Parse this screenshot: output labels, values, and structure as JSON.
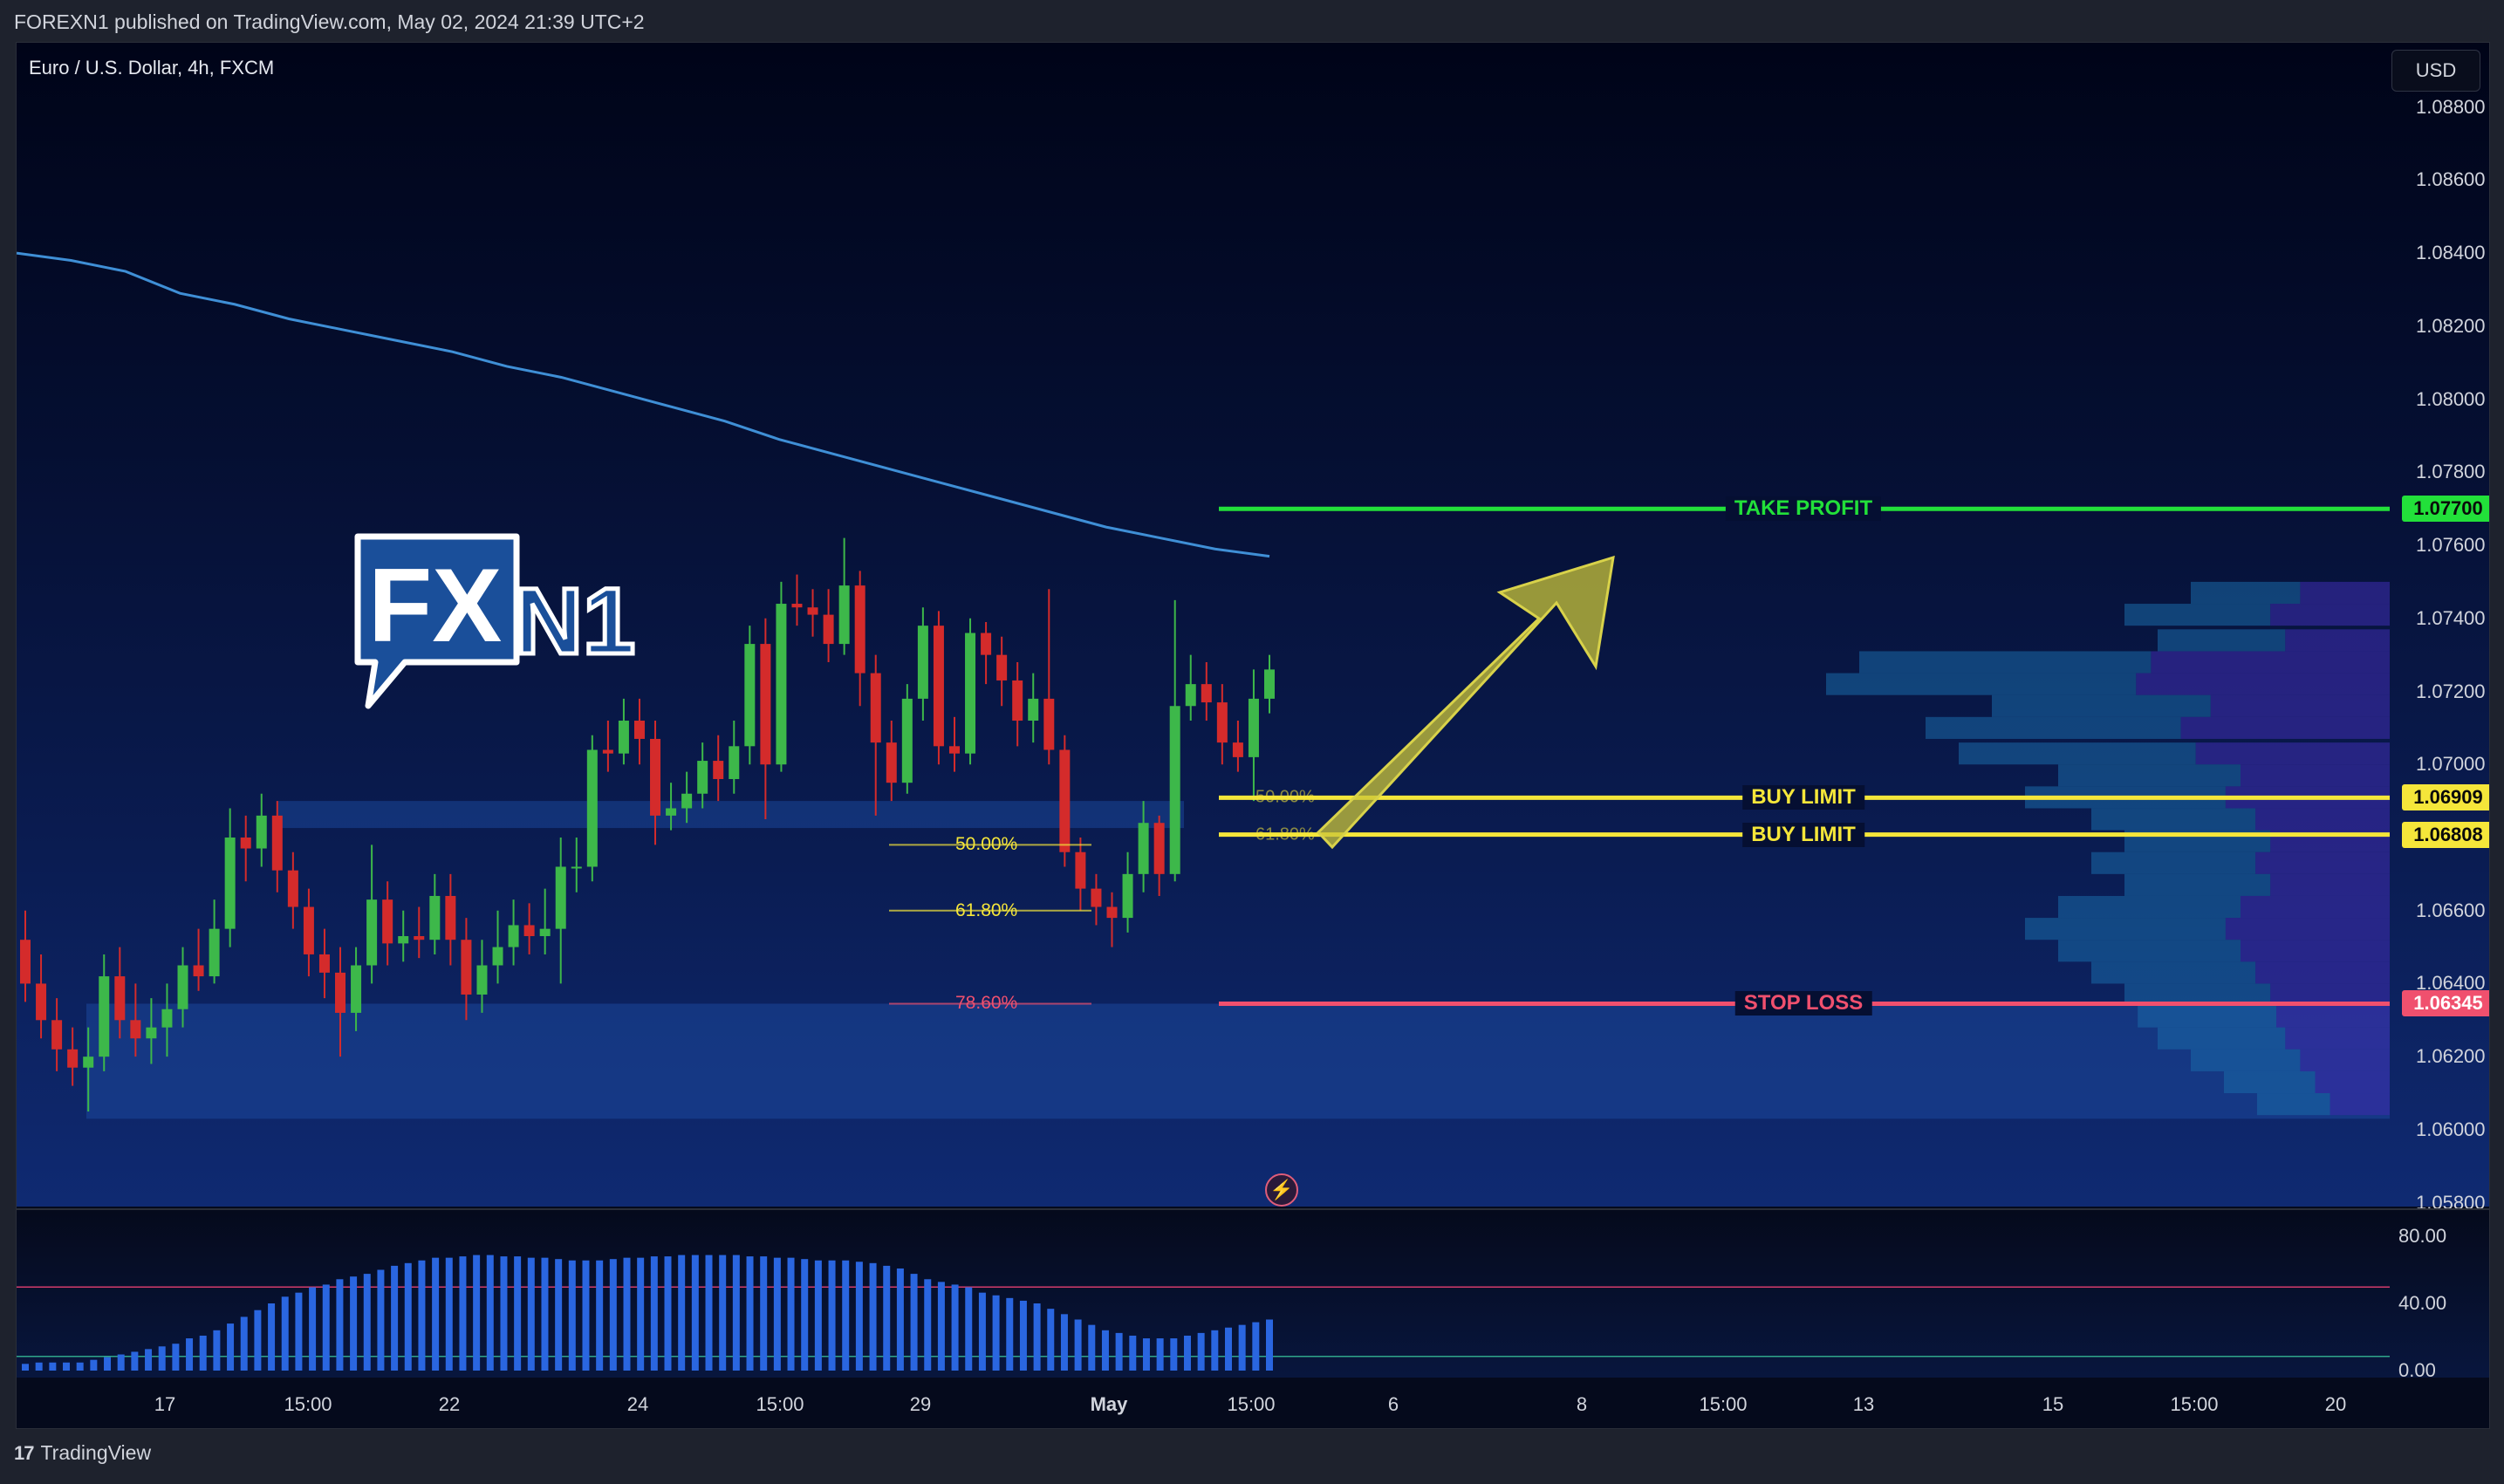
{
  "header": {
    "published_text": "FOREXN1 published on TradingView.com, May 02, 2024 21:39 UTC+2"
  },
  "chart": {
    "symbol_title": "Euro / U.S. Dollar, 4h, FXCM",
    "currency": "USD",
    "logo": {
      "text_a": "FX",
      "text_b": "N1"
    }
  },
  "levels": {
    "take_profit": {
      "label": "TAKE PROFIT",
      "price": "1.07700",
      "color": "#22e03a"
    },
    "buy_limit_1": {
      "label": "BUY LIMIT",
      "price": "1.06909",
      "color": "#f5e63a"
    },
    "buy_limit_2": {
      "label": "BUY LIMIT",
      "price": "1.06808",
      "color": "#f5e63a"
    },
    "stop_loss": {
      "label": "STOP LOSS",
      "price": "1.06345",
      "color": "#f0506e"
    }
  },
  "fib_labels": {
    "f50": "50.00%",
    "f618": "61.80%",
    "f786": "78.60%",
    "f50_small": "50.00%",
    "f618_small": "61.80%"
  },
  "osc_ticks": [
    "80.00",
    "40.00",
    "0.00"
  ],
  "footer": {
    "brand_mark": "17",
    "brand": "TradingView"
  },
  "chart_data": {
    "type": "candlestick",
    "title": "Euro / U.S. Dollar, 4h, FXCM",
    "price_axis_ticks": [
      "1.08800",
      "1.08600",
      "1.08400",
      "1.08200",
      "1.08000",
      "1.07800",
      "1.07600",
      "1.07400",
      "1.07200",
      "1.07000",
      "1.06400",
      "1.06600",
      "1.06200",
      "1.06000",
      "1.05800"
    ],
    "time_axis_ticks": [
      "17",
      "15:00",
      "22",
      "24",
      "15:00",
      "29",
      "May",
      "15:00",
      "6",
      "8",
      "15:00",
      "13",
      "15",
      "15:00",
      "20"
    ],
    "ylim": [
      1.0578,
      1.0889
    ],
    "levels": [
      {
        "name": "TAKE PROFIT",
        "value": 1.077
      },
      {
        "name": "BUY LIMIT",
        "value": 1.06909
      },
      {
        "name": "BUY LIMIT",
        "value": 1.06808
      },
      {
        "name": "STOP LOSS",
        "value": 1.06345
      }
    ],
    "fibonacci": [
      {
        "label": "50.00%",
        "value": 1.0678
      },
      {
        "label": "61.80%",
        "value": 1.066
      },
      {
        "label": "78.60%",
        "value": 1.06345
      }
    ],
    "moving_average": [
      1.084,
      1.0838,
      1.0835,
      1.0829,
      1.0826,
      1.0822,
      1.0819,
      1.0816,
      1.0813,
      1.0809,
      1.0806,
      1.0802,
      1.0798,
      1.0794,
      1.0789,
      1.0785,
      1.0781,
      1.0777,
      1.0773,
      1.0769,
      1.0765,
      1.0762,
      1.0759,
      1.0757
    ],
    "candles": [
      [
        1.0652,
        1.064,
        1.066,
        1.0635
      ],
      [
        1.064,
        1.063,
        1.0648,
        1.0625
      ],
      [
        1.063,
        1.0622,
        1.0636,
        1.0616
      ],
      [
        1.0622,
        1.0617,
        1.0628,
        1.0612
      ],
      [
        1.0617,
        1.062,
        1.0628,
        1.0605
      ],
      [
        1.062,
        1.0642,
        1.0648,
        1.0616
      ],
      [
        1.0642,
        1.063,
        1.065,
        1.0625
      ],
      [
        1.063,
        1.0625,
        1.064,
        1.062
      ],
      [
        1.0625,
        1.0628,
        1.0636,
        1.0618
      ],
      [
        1.0628,
        1.0633,
        1.064,
        1.062
      ],
      [
        1.0633,
        1.0645,
        1.065,
        1.0628
      ],
      [
        1.0645,
        1.0642,
        1.0655,
        1.0638
      ],
      [
        1.0642,
        1.0655,
        1.0663,
        1.064
      ],
      [
        1.0655,
        1.068,
        1.0688,
        1.065
      ],
      [
        1.068,
        1.0677,
        1.0686,
        1.0668
      ],
      [
        1.0677,
        1.0686,
        1.0692,
        1.0672
      ],
      [
        1.0686,
        1.0671,
        1.069,
        1.0665
      ],
      [
        1.0671,
        1.0661,
        1.0676,
        1.0655
      ],
      [
        1.0661,
        1.0648,
        1.0666,
        1.0642
      ],
      [
        1.0648,
        1.0643,
        1.0655,
        1.0636
      ],
      [
        1.0643,
        1.0632,
        1.065,
        1.062
      ],
      [
        1.0632,
        1.0645,
        1.065,
        1.0627
      ],
      [
        1.0645,
        1.0663,
        1.0678,
        1.064
      ],
      [
        1.0663,
        1.0651,
        1.0668,
        1.0645
      ],
      [
        1.0651,
        1.0653,
        1.066,
        1.0646
      ],
      [
        1.0653,
        1.0652,
        1.0661,
        1.0647
      ],
      [
        1.0652,
        1.0664,
        1.067,
        1.0648
      ],
      [
        1.0664,
        1.0652,
        1.067,
        1.0645
      ],
      [
        1.0652,
        1.0637,
        1.0658,
        1.063
      ],
      [
        1.0637,
        1.0645,
        1.0652,
        1.0632
      ],
      [
        1.0645,
        1.065,
        1.066,
        1.064
      ],
      [
        1.065,
        1.0656,
        1.0663,
        1.0645
      ],
      [
        1.0656,
        1.0653,
        1.0662,
        1.0648
      ],
      [
        1.0653,
        1.0655,
        1.0666,
        1.0648
      ],
      [
        1.0655,
        1.0672,
        1.068,
        1.064
      ],
      [
        1.0672,
        1.0672,
        1.068,
        1.0665
      ],
      [
        1.0672,
        1.0704,
        1.0708,
        1.0668
      ],
      [
        1.0704,
        1.0703,
        1.0712,
        1.0698
      ],
      [
        1.0703,
        1.0712,
        1.0718,
        1.07
      ],
      [
        1.0712,
        1.0707,
        1.0718,
        1.07
      ],
      [
        1.0707,
        1.0686,
        1.0712,
        1.0678
      ],
      [
        1.0686,
        1.0688,
        1.0695,
        1.0682
      ],
      [
        1.0688,
        1.0692,
        1.0698,
        1.0684
      ],
      [
        1.0692,
        1.0701,
        1.0706,
        1.0688
      ],
      [
        1.0701,
        1.0696,
        1.0708,
        1.069
      ],
      [
        1.0696,
        1.0705,
        1.0712,
        1.0692
      ],
      [
        1.0705,
        1.0733,
        1.0738,
        1.07
      ],
      [
        1.0733,
        1.07,
        1.074,
        1.0685
      ],
      [
        1.07,
        1.0744,
        1.075,
        1.0698
      ],
      [
        1.0744,
        1.0743,
        1.0752,
        1.0738
      ],
      [
        1.0743,
        1.0741,
        1.0748,
        1.0735
      ],
      [
        1.0741,
        1.0733,
        1.0748,
        1.0728
      ],
      [
        1.0733,
        1.0749,
        1.0762,
        1.073
      ],
      [
        1.0749,
        1.0725,
        1.0753,
        1.0716
      ],
      [
        1.0725,
        1.0706,
        1.073,
        1.0686
      ],
      [
        1.0706,
        1.0695,
        1.0712,
        1.069
      ],
      [
        1.0695,
        1.0718,
        1.0722,
        1.0692
      ],
      [
        1.0718,
        1.0738,
        1.0743,
        1.0712
      ],
      [
        1.0738,
        1.0705,
        1.0742,
        1.07
      ],
      [
        1.0705,
        1.0703,
        1.0713,
        1.0698
      ],
      [
        1.0703,
        1.0736,
        1.074,
        1.07
      ],
      [
        1.0736,
        1.073,
        1.0739,
        1.0722
      ],
      [
        1.073,
        1.0723,
        1.0735,
        1.0716
      ],
      [
        1.0723,
        1.0712,
        1.0728,
        1.0705
      ],
      [
        1.0712,
        1.0718,
        1.0725,
        1.0706
      ],
      [
        1.0718,
        1.0704,
        1.0748,
        1.07
      ],
      [
        1.0704,
        1.0676,
        1.0708,
        1.0672
      ],
      [
        1.0676,
        1.0666,
        1.068,
        1.066
      ],
      [
        1.0666,
        1.0661,
        1.067,
        1.0656
      ],
      [
        1.0661,
        1.0658,
        1.0665,
        1.065
      ],
      [
        1.0658,
        1.067,
        1.0676,
        1.0654
      ],
      [
        1.067,
        1.0684,
        1.069,
        1.0665
      ],
      [
        1.0684,
        1.067,
        1.0686,
        1.0664
      ],
      [
        1.067,
        1.0716,
        1.0745,
        1.0668
      ],
      [
        1.0716,
        1.0722,
        1.073,
        1.0712
      ],
      [
        1.0722,
        1.0717,
        1.0728,
        1.0712
      ],
      [
        1.0717,
        1.0706,
        1.0722,
        1.07
      ],
      [
        1.0706,
        1.0702,
        1.0712,
        1.0698
      ],
      [
        1.0702,
        1.0718,
        1.0726,
        1.069
      ],
      [
        1.0718,
        1.0726,
        1.073,
        1.0714
      ]
    ],
    "oscillator": {
      "ylim": [
        0,
        100
      ],
      "levels": [
        70,
        30
      ],
      "values": [
        5,
        6,
        6,
        6,
        6,
        8,
        10,
        12,
        14,
        16,
        18,
        20,
        24,
        26,
        30,
        35,
        40,
        45,
        50,
        55,
        58,
        62,
        64,
        68,
        70,
        72,
        75,
        78,
        80,
        82,
        84,
        84,
        85,
        86,
        86,
        85,
        85,
        84,
        84,
        83,
        82,
        82,
        82,
        83,
        84,
        84,
        85,
        85,
        86,
        86,
        86,
        86,
        86,
        85,
        85,
        84,
        84,
        83,
        82,
        82,
        82,
        81,
        80,
        78,
        76,
        72,
        68,
        66,
        64,
        62,
        58,
        56,
        54,
        52,
        50,
        46,
        42,
        38,
        34,
        30,
        28,
        26,
        24,
        24,
        24,
        26,
        28,
        30,
        32,
        34,
        36,
        38
      ]
    }
  }
}
